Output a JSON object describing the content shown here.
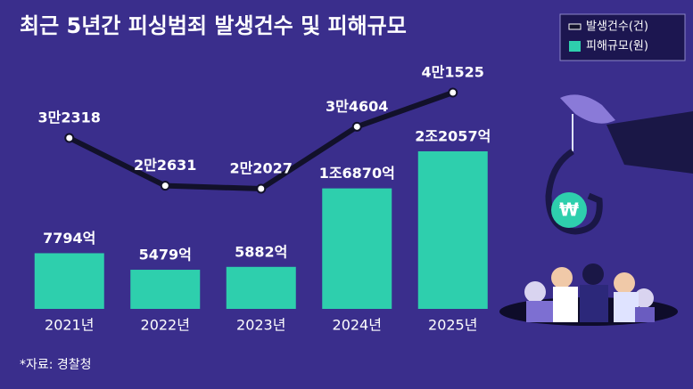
{
  "chart_data": {
    "type": "combo",
    "title": "최근 5년간 피싱범죄 발생건수 및 피해규모",
    "categories": [
      "2021년",
      "2022년",
      "2023년",
      "2024년",
      "2025년"
    ],
    "series": [
      {
        "name": "발생건수(건)",
        "type": "line",
        "color": "#12112a",
        "values": [
          32318,
          22631,
          22027,
          34604,
          41525
        ],
        "value_labels": [
          "3만2318",
          "2만2631",
          "2만2027",
          "3만4604",
          "4만1525"
        ]
      },
      {
        "name": "피해규모(원)",
        "type": "bar",
        "color": "#2ecfad",
        "values": [
          7794,
          5479,
          5882,
          16870,
          22057
        ],
        "value_labels": [
          "7794억",
          "5479억",
          "5882억",
          "1조6870억",
          "2조2057억"
        ]
      }
    ],
    "source": "*자료: 경찰청"
  }
}
